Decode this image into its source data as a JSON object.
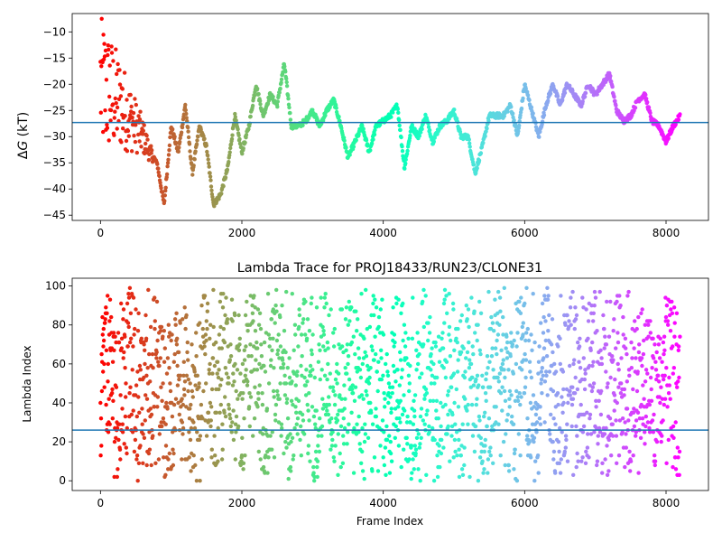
{
  "chart_data": [
    {
      "type": "scatter",
      "title": "",
      "xlabel": "",
      "ylabel": "ΔG (kT)",
      "ylabel_math_symbol": "G",
      "xlim": [
        -400,
        8600
      ],
      "ylim": [
        -46,
        -6.5
      ],
      "xticks": [
        0,
        2000,
        4000,
        6000,
        8000
      ],
      "xtick_labels": [
        "0",
        "2000",
        "4000",
        "6000",
        "8000"
      ],
      "yticks": [
        -45,
        -40,
        -35,
        -30,
        -25,
        -20,
        -15,
        -10
      ],
      "ytick_labels": [
        "−45",
        "−40",
        "−35",
        "−30",
        "−25",
        "−20",
        "−15",
        "−10"
      ],
      "hline": -27.3,
      "hline_color": "#1f77b4",
      "colormap": "rainbow, red at frame 0 to violet at last frame",
      "frames": 8200,
      "grid": false,
      "legend": "none",
      "trace_keypoints_x": [
        0,
        150,
        300,
        450,
        600,
        700,
        800,
        900,
        1000,
        1100,
        1200,
        1300,
        1400,
        1500,
        1600,
        1700,
        1800,
        1900,
        2000,
        2100,
        2200,
        2300,
        2400,
        2500,
        2600,
        2700,
        2800,
        2900,
        3000,
        3100,
        3200,
        3300,
        3400,
        3500,
        3600,
        3700,
        3800,
        3900,
        4000,
        4100,
        4200,
        4300,
        4400,
        4500,
        4600,
        4700,
        4800,
        4900,
        5000,
        5100,
        5200,
        5300,
        5400,
        5500,
        5600,
        5700,
        5800,
        5900,
        6000,
        6100,
        6200,
        6300,
        6400,
        6500,
        6600,
        6700,
        6800,
        6900,
        7000,
        7100,
        7200,
        7300,
        7400,
        7500,
        7600,
        7700,
        7800,
        7900,
        8000,
        8100,
        8200
      ],
      "trace_keypoints_y": [
        -20,
        -22,
        -24,
        -27,
        -30,
        -33,
        -35,
        -43,
        -28,
        -33,
        -24,
        -37,
        -28,
        -32,
        -43,
        -41,
        -36,
        -26,
        -33,
        -28,
        -20,
        -26,
        -22,
        -24,
        -16,
        -28,
        -28,
        -27,
        -25,
        -28,
        -25,
        -23,
        -28,
        -34,
        -31,
        -28,
        -33,
        -28,
        -27,
        -26,
        -24,
        -36,
        -28,
        -30,
        -26,
        -31,
        -28,
        -27,
        -25,
        -30,
        -30,
        -37,
        -32,
        -26,
        -26,
        -26,
        -24,
        -30,
        -20,
        -25,
        -30,
        -24,
        -20,
        -24,
        -20,
        -22,
        -24,
        -20,
        -22,
        -20,
        -18,
        -25,
        -27,
        -26,
        -23,
        -22,
        -27,
        -28,
        -31,
        -28,
        -26
      ],
      "scatter_early_frames_range": [
        0,
        800
      ],
      "scatter_early_y_range": [
        -42,
        -7.5
      ]
    },
    {
      "type": "scatter",
      "title": "Lambda Trace for PROJ18433/RUN23/CLONE31",
      "xlabel": "Frame Index",
      "ylabel": "Lambda Index",
      "xlim": [
        -400,
        8600
      ],
      "ylim": [
        -5,
        104
      ],
      "xticks": [
        0,
        2000,
        4000,
        6000,
        8000
      ],
      "xtick_labels": [
        "0",
        "2000",
        "4000",
        "6000",
        "8000"
      ],
      "yticks": [
        0,
        20,
        40,
        60,
        80,
        100
      ],
      "ytick_labels": [
        "0",
        "20",
        "40",
        "60",
        "80",
        "100"
      ],
      "hline": 26,
      "hline_color": "#1f77b4",
      "colormap": "rainbow, red at frame 0 to violet at last frame",
      "frames": 8200,
      "lambda_range": [
        0,
        99
      ],
      "grid": false,
      "legend": "none"
    }
  ]
}
